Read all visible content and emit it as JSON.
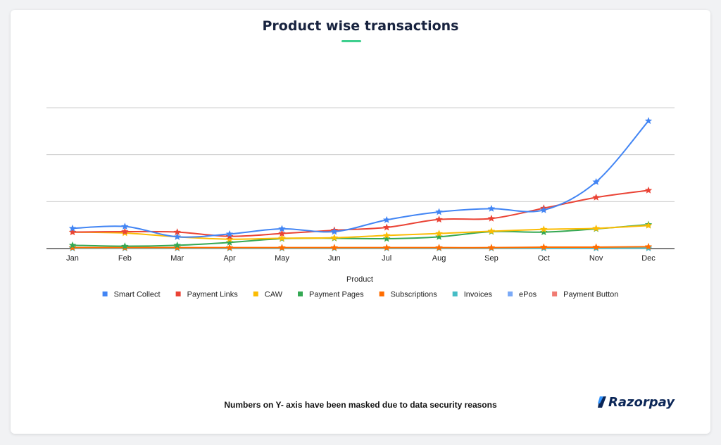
{
  "chart_data": {
    "type": "line",
    "title": "Product wise transactions",
    "xlabel": "Product",
    "ylabel": "",
    "categories": [
      "Jan",
      "Feb",
      "Mar",
      "Apr",
      "May",
      "Jun",
      "Jul",
      "Aug",
      "Sep",
      "Oct",
      "Nov",
      "Dec"
    ],
    "ylim": [
      0,
      300
    ],
    "y_gridlines": [
      0,
      100,
      200,
      300
    ],
    "y_tick_labels_shown": false,
    "legend_position": "bottom",
    "marker": "star",
    "smooth": true,
    "series": [
      {
        "name": "Smart Collect",
        "color": "#4285f4",
        "values": [
          43,
          47,
          25,
          31,
          42,
          36,
          61,
          78,
          85,
          82,
          142,
          272
        ]
      },
      {
        "name": "Payment Links",
        "color": "#ea4335",
        "values": [
          35,
          36,
          35,
          26,
          32,
          39,
          45,
          62,
          64,
          86,
          109,
          124
        ]
      },
      {
        "name": "CAW",
        "color": "#fbbc04",
        "values": [
          35,
          33,
          25,
          20,
          22,
          23,
          28,
          32,
          37,
          41,
          43,
          49
        ]
      },
      {
        "name": "Payment Pages",
        "color": "#34a853",
        "values": [
          7,
          5,
          7,
          13,
          21,
          22,
          21,
          25,
          36,
          35,
          42,
          51
        ]
      },
      {
        "name": "Subscriptions",
        "color": "#ff6d01",
        "values": [
          2,
          2,
          2,
          2,
          2,
          2,
          2,
          2,
          2,
          3,
          3,
          4
        ]
      },
      {
        "name": "Invoices",
        "color": "#46bdc6",
        "values": [
          1,
          1,
          1,
          1,
          1,
          1,
          1,
          1,
          1,
          1,
          1,
          1
        ]
      },
      {
        "name": "ePos",
        "color": "#7baaf7",
        "values": [
          1,
          1,
          1,
          1,
          1,
          1,
          1,
          1,
          1,
          1,
          1,
          1
        ]
      },
      {
        "name": "Payment Button",
        "color": "#f07b72",
        "values": [
          1,
          1,
          1,
          1,
          1,
          1,
          1,
          1,
          1,
          1,
          1,
          1
        ]
      }
    ]
  },
  "footnote": "Numbers on Y- axis have been masked due to data security reasons",
  "logo": {
    "text": "Razorpay",
    "icon": "razorpay-logo-icon",
    "color": "#0b2657",
    "accent": "#3395ff"
  }
}
